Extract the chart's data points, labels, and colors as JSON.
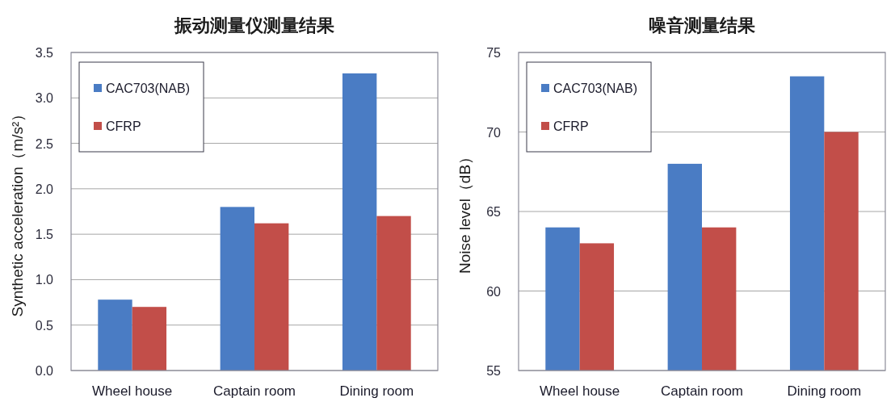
{
  "chart_data": [
    {
      "type": "bar",
      "title": "振动测量仪测量结果",
      "ylabel": "Synthetic acceleration（m/s²）",
      "categories": [
        "Wheel house",
        "Captain room",
        "Dining room"
      ],
      "series": [
        {
          "name": "CAC703(NAB)",
          "color": "#4a7cc4",
          "values": [
            0.78,
            1.8,
            3.27
          ]
        },
        {
          "name": "CFRP",
          "color": "#c24e49",
          "values": [
            0.7,
            1.62,
            1.7
          ]
        }
      ],
      "ylim": [
        0,
        3.5
      ],
      "yticks": [
        {
          "value": 0,
          "label": "0.0"
        },
        0.5,
        {
          "value": 1,
          "label": "1.0"
        },
        1.5,
        {
          "value": 2,
          "label": "2.0"
        },
        2.5,
        {
          "value": 3,
          "label": "3.0"
        },
        3.5
      ],
      "grid": "y",
      "legend": "top left"
    },
    {
      "type": "bar",
      "title": "噪音测量结果",
      "ylabel": "Noise level（dB）",
      "categories": [
        "Wheel house",
        "Captain room",
        "Dining room"
      ],
      "series": [
        {
          "name": "CAC703(NAB)",
          "color": "#4a7cc4",
          "values": [
            64,
            68,
            73.5
          ]
        },
        {
          "name": "CFRP",
          "color": "#c24e49",
          "values": [
            63,
            64,
            70
          ]
        }
      ],
      "ylim": [
        55,
        75
      ],
      "yticks": [
        55,
        60,
        65,
        70,
        75
      ],
      "grid": "y",
      "legend": "top left"
    }
  ]
}
